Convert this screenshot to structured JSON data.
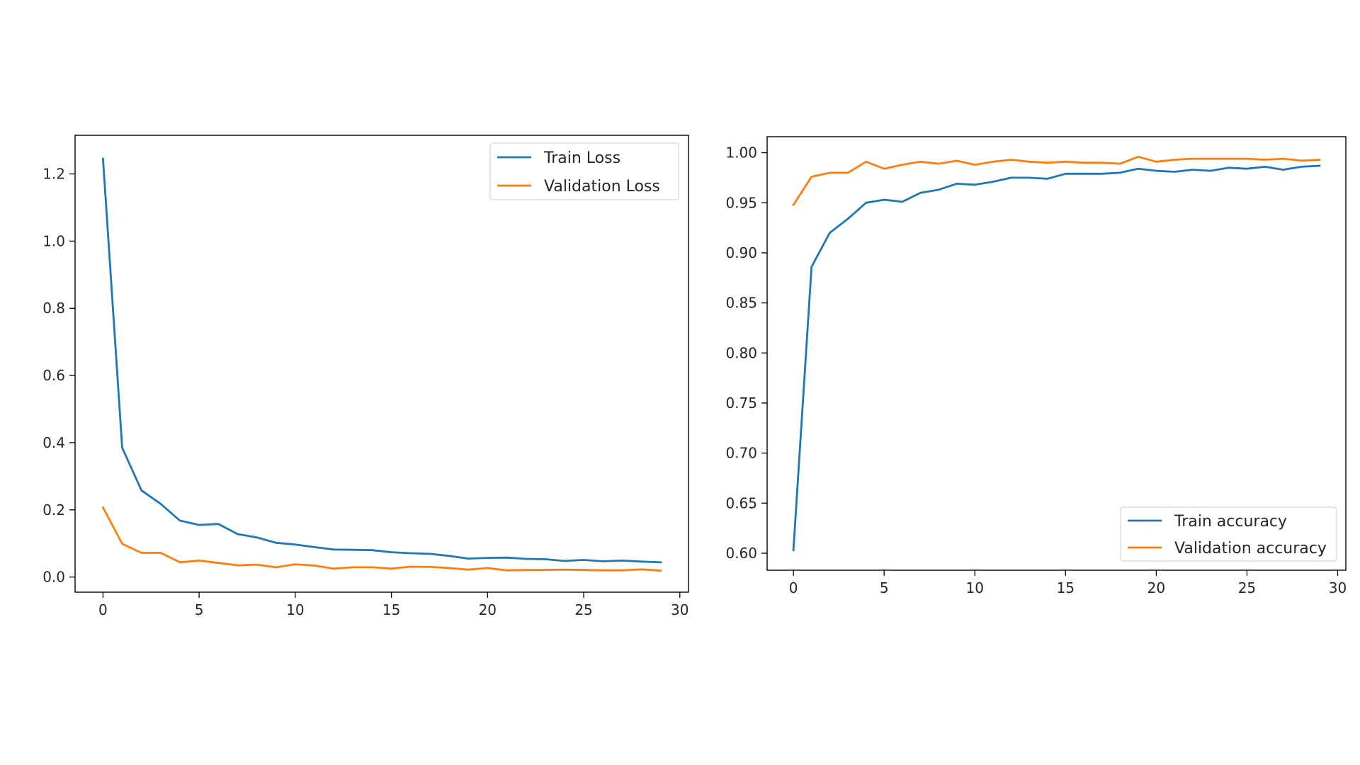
{
  "chart_data": [
    {
      "type": "line",
      "title": "",
      "xlabel": "",
      "ylabel": "",
      "xlim": [
        -1.45,
        30.45
      ],
      "ylim": [
        -0.045,
        1.315
      ],
      "xticks": [
        0,
        5,
        10,
        15,
        20,
        25,
        30
      ],
      "yticks": [
        0.0,
        0.2,
        0.4,
        0.6,
        0.8,
        1.0,
        1.2
      ],
      "ytick_decimals": 1,
      "grid": false,
      "legend_position": "upper right",
      "x": [
        0,
        1,
        2,
        3,
        4,
        5,
        6,
        7,
        8,
        9,
        10,
        11,
        12,
        13,
        14,
        15,
        16,
        17,
        18,
        19,
        20,
        21,
        22,
        23,
        24,
        25,
        26,
        27,
        28,
        29
      ],
      "series": [
        {
          "name": "Train Loss",
          "color": "#1f77b4",
          "values": [
            1.245,
            0.385,
            0.258,
            0.218,
            0.168,
            0.155,
            0.158,
            0.128,
            0.118,
            0.102,
            0.097,
            0.089,
            0.082,
            0.081,
            0.08,
            0.074,
            0.071,
            0.069,
            0.063,
            0.055,
            0.057,
            0.058,
            0.054,
            0.053,
            0.048,
            0.051,
            0.047,
            0.049,
            0.046,
            0.044
          ]
        },
        {
          "name": "Validation Loss",
          "color": "#ff7f0e",
          "values": [
            0.207,
            0.099,
            0.072,
            0.072,
            0.044,
            0.049,
            0.042,
            0.035,
            0.037,
            0.029,
            0.038,
            0.034,
            0.025,
            0.029,
            0.029,
            0.025,
            0.031,
            0.03,
            0.027,
            0.022,
            0.027,
            0.02,
            0.021,
            0.021,
            0.022,
            0.021,
            0.02,
            0.02,
            0.023,
            0.019
          ]
        }
      ]
    },
    {
      "type": "line",
      "title": "",
      "xlabel": "",
      "ylabel": "",
      "xlim": [
        -1.45,
        30.45
      ],
      "ylim": [
        0.583,
        1.016
      ],
      "xticks": [
        0,
        5,
        10,
        15,
        20,
        25,
        30
      ],
      "yticks": [
        0.6,
        0.65,
        0.7,
        0.75,
        0.8,
        0.85,
        0.9,
        0.95,
        1.0
      ],
      "ytick_decimals": 2,
      "grid": false,
      "legend_position": "lower right",
      "x": [
        0,
        1,
        2,
        3,
        4,
        5,
        6,
        7,
        8,
        9,
        10,
        11,
        12,
        13,
        14,
        15,
        16,
        17,
        18,
        19,
        20,
        21,
        22,
        23,
        24,
        25,
        26,
        27,
        28,
        29
      ],
      "series": [
        {
          "name": "Train accuracy",
          "color": "#1f77b4",
          "values": [
            0.603,
            0.886,
            0.92,
            0.934,
            0.95,
            0.953,
            0.951,
            0.96,
            0.963,
            0.969,
            0.968,
            0.971,
            0.975,
            0.975,
            0.974,
            0.979,
            0.979,
            0.979,
            0.98,
            0.984,
            0.982,
            0.981,
            0.983,
            0.982,
            0.985,
            0.984,
            0.986,
            0.983,
            0.986,
            0.987
          ]
        },
        {
          "name": "Validation accuracy",
          "color": "#ff7f0e",
          "values": [
            0.948,
            0.976,
            0.98,
            0.98,
            0.991,
            0.984,
            0.988,
            0.991,
            0.989,
            0.992,
            0.988,
            0.991,
            0.993,
            0.991,
            0.99,
            0.991,
            0.99,
            0.99,
            0.989,
            0.996,
            0.991,
            0.993,
            0.994,
            0.994,
            0.994,
            0.994,
            0.993,
            0.994,
            0.992,
            0.993
          ]
        }
      ]
    }
  ]
}
